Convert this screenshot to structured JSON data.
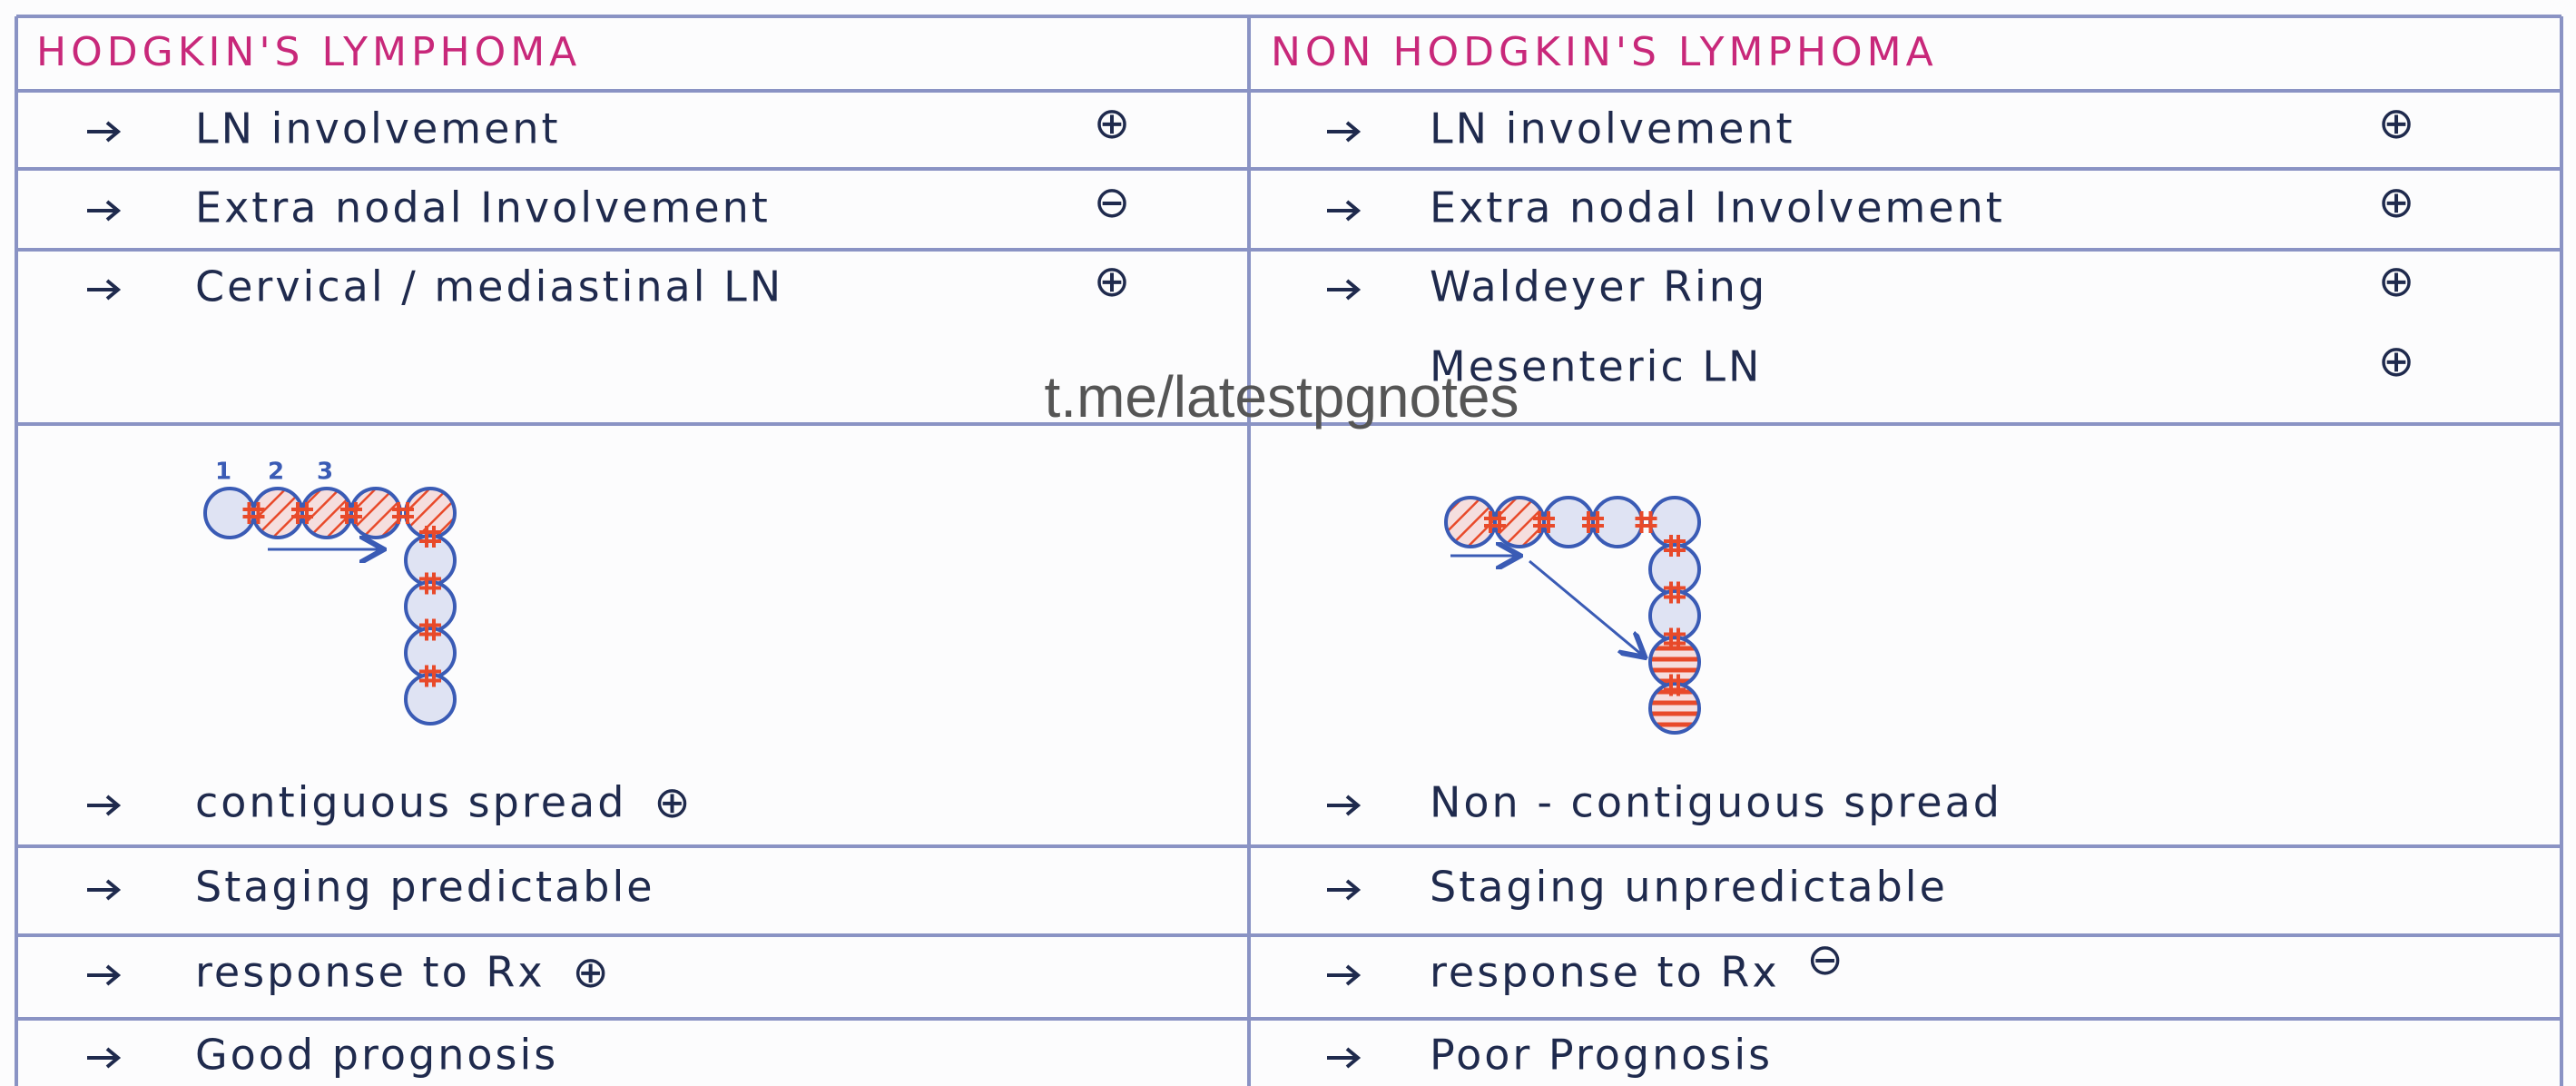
{
  "header": {
    "left": "HODGKIN'S LYMPHOMA",
    "right": "NON HODGKIN'S LYMPHOMA"
  },
  "features": {
    "left": [
      {
        "text": "LN involvement",
        "sign": "⊕"
      },
      {
        "text": "Extra nodal Involvement",
        "sign": "⊖"
      },
      {
        "text": "Cervical / mediastinal LN",
        "sign": "⊕"
      }
    ],
    "right": [
      {
        "text": "LN involvement",
        "sign": "⊕"
      },
      {
        "text": "Extra nodal Involvement",
        "sign": "⊕"
      },
      {
        "text": "Waldeyer Ring",
        "sign": "⊕"
      },
      {
        "text": "Mesenteric LN",
        "sign": "⊕"
      }
    ]
  },
  "diagram_labels": [
    "1",
    "2",
    "3"
  ],
  "comparison": [
    {
      "left": {
        "text": "contiguous spread",
        "sign": "⊕"
      },
      "right": {
        "text": "Non - contiguous spread"
      }
    },
    {
      "left": {
        "text": "Staging predictable"
      },
      "right": {
        "text": "Staging unpredictable"
      }
    },
    {
      "left": {
        "text": "response to Rx",
        "sign": "⊕"
      },
      "right": {
        "text": "response to Rx",
        "sign": "⊖"
      }
    },
    {
      "left": {
        "text": "Good prognosis"
      },
      "right": {
        "text": "Poor Prognosis"
      }
    }
  ],
  "watermark": "t.me/latestpgnotes"
}
